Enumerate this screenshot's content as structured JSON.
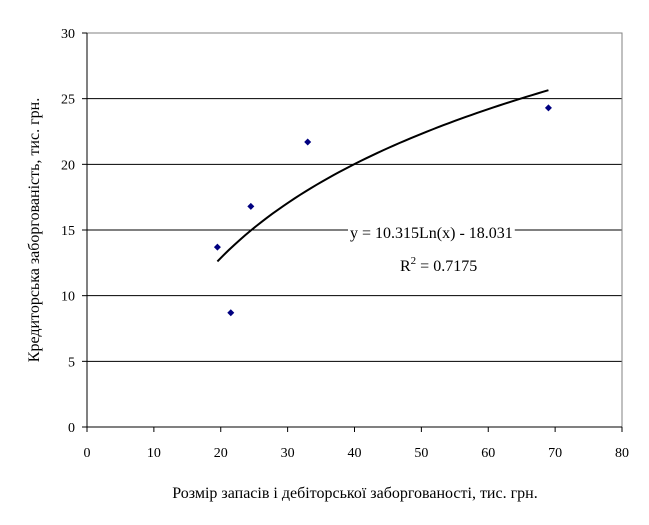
{
  "chart_data": {
    "type": "scatter",
    "xlabel": "Розмір запасів і дебіторської заборгованості, тис. грн.",
    "ylabel": "Кредиторська заборгованість, тис. грн.",
    "xlim": [
      0,
      80
    ],
    "ylim": [
      0,
      30
    ],
    "x_ticks": [
      "0",
      "10",
      "20",
      "30",
      "40",
      "50",
      "60",
      "70",
      "80"
    ],
    "y_ticks": [
      "0",
      "5",
      "10",
      "15",
      "20",
      "25",
      "30"
    ],
    "grid": "horizontal",
    "series": [
      {
        "points": [
          {
            "x": 19.5,
            "y": 13.7
          },
          {
            "x": 21.5,
            "y": 8.7
          },
          {
            "x": 24.5,
            "y": 16.8
          },
          {
            "x": 33.0,
            "y": 21.7
          },
          {
            "x": 69.0,
            "y": 24.3
          }
        ],
        "color": "#000080"
      }
    ],
    "trendline": {
      "type": "logarithmic",
      "a": 10.315,
      "b": -18.031,
      "x_range": [
        19.5,
        69.0
      ],
      "color": "#000000",
      "equation_label": "y = 10.315Ln(x) - 18.031",
      "r2_prefix": "R",
      "r2_exp": "2",
      "r2_value": " = 0.7175"
    }
  }
}
